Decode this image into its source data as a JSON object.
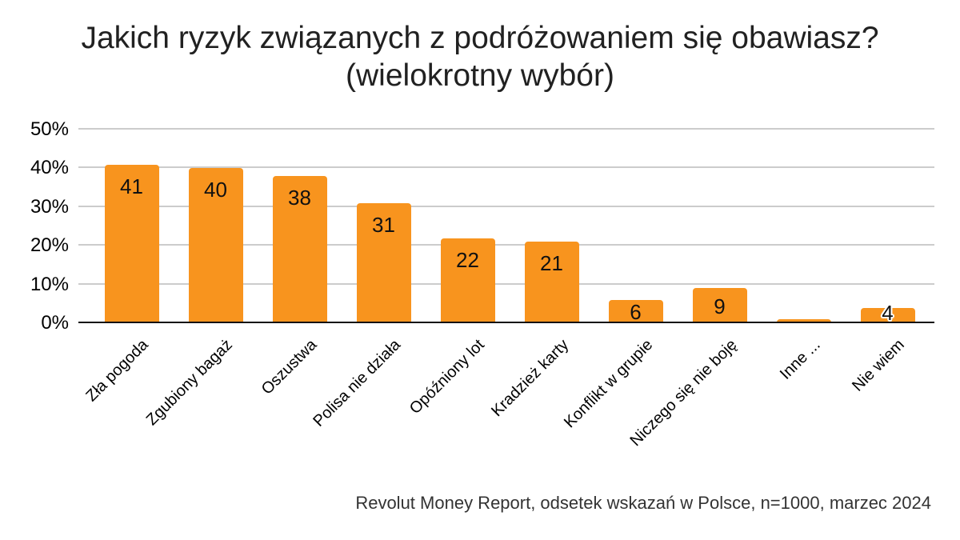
{
  "page": {
    "title_line1": "Jakich ryzyk związanych z podróżowaniem się obawiasz?",
    "title_line2": "(wielokrotny wybór)",
    "footer": "Revolut Money Report, odsetek wskazań w Polsce, n=1000, marzec 2024"
  },
  "chart_data": {
    "type": "bar",
    "title": "Jakich ryzyk związanych z podróżowaniem się obawiasz? (wielokrotny wybór)",
    "categories": [
      "Zła pogoda",
      "Zgubiony bagaż",
      "Oszustwa",
      "Polisa nie działa",
      "Opóźniony lot",
      "Kradzież karty",
      "Konflikt w grupie",
      "Niczego się nie boję",
      "Inne ...",
      "Nie wiem"
    ],
    "values": [
      41,
      40,
      38,
      31,
      22,
      21,
      6,
      9,
      1,
      4
    ],
    "data_labels": [
      "41",
      "40",
      "38",
      "31",
      "22",
      "21",
      "6",
      "9",
      "",
      "4"
    ],
    "xlabel": "",
    "ylabel": "",
    "ylim": [
      0,
      50
    ],
    "ytick_values": [
      0,
      10,
      20,
      30,
      40,
      50
    ],
    "ytick_labels": [
      "0%",
      "10%",
      "20%",
      "30%",
      "40%",
      "50%"
    ],
    "grid": true,
    "legend": "none",
    "bar_color": "#F8941E",
    "source_note": "Revolut Money Report, odsetek wskazań w Polsce, n=1000, marzec 2024"
  }
}
